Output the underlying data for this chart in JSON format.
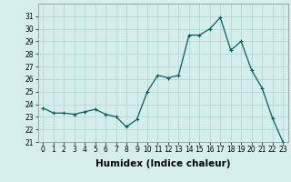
{
  "x": [
    0,
    1,
    2,
    3,
    4,
    5,
    6,
    7,
    8,
    9,
    10,
    11,
    12,
    13,
    14,
    15,
    16,
    17,
    18,
    19,
    20,
    21,
    22,
    23
  ],
  "y": [
    23.7,
    23.3,
    23.3,
    23.2,
    23.4,
    23.6,
    23.2,
    23.0,
    22.2,
    22.8,
    25.0,
    26.3,
    26.1,
    26.3,
    29.5,
    29.5,
    30.0,
    30.9,
    28.3,
    29.0,
    26.7,
    25.3,
    22.9,
    21.0
  ],
  "line_color": "#006060",
  "marker": "+",
  "marker_size": 3,
  "marker_linewidth": 0.8,
  "line_width": 0.9,
  "bg_color": "#d5eeeb",
  "grid_color": "#aed4d0",
  "xlabel": "Humidex (Indice chaleur)",
  "ylim": [
    21,
    32
  ],
  "xlim": [
    -0.5,
    23.5
  ],
  "yticks": [
    21,
    22,
    23,
    24,
    25,
    26,
    27,
    28,
    29,
    30,
    31
  ],
  "xticks": [
    0,
    1,
    2,
    3,
    4,
    5,
    6,
    7,
    8,
    9,
    10,
    11,
    12,
    13,
    14,
    15,
    16,
    17,
    18,
    19,
    20,
    21,
    22,
    23
  ],
  "tick_fontsize": 5.5,
  "xlabel_fontsize": 7.5,
  "xlabel_fontweight": "bold"
}
